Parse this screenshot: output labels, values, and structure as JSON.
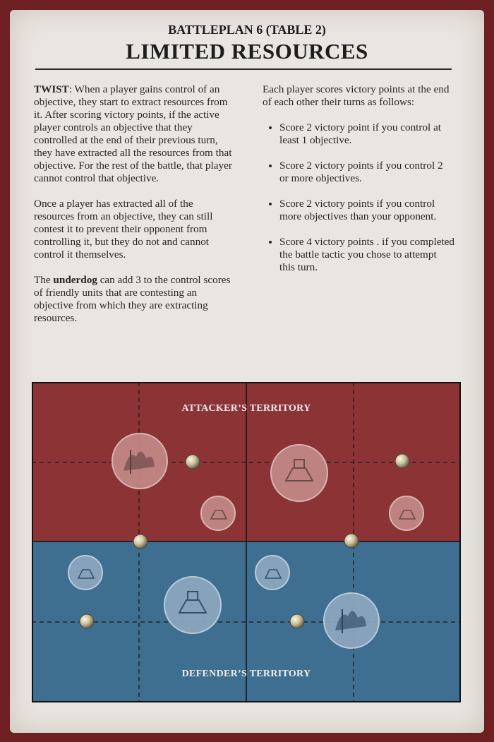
{
  "header": {
    "subtitle": "BATTLEPLAN 6 (TABLE 2)",
    "title": "LIMITED RESOURCES"
  },
  "left_column": {
    "twist_label": "TWIST",
    "twist_text": ": When a player gains control of an objective, they start to extract resources from it. After scoring victory points, if the active player controls an objective that they controlled at the end of their previous turn, they have extracted all the resources from that objective. For the rest of the battle, that player cannot control that objective.",
    "para2": "Once a player has extracted all of the resources from an objective, they can still contest it to prevent their opponent from controlling it, but they do not and cannot control it themselves.",
    "para3_prefix": "The ",
    "para3_bold": "underdog",
    "para3_suffix": " can add 3 to the control scores of friendly units that are contesting an objective from which they are extracting resources."
  },
  "right_column": {
    "intro": "Each player scores victory points at the end of each other their turns as follows:",
    "bullets": [
      "Score 2 victory point if you control at least 1 objective.",
      "Score 2 victory points if you control 2 or more objectives.",
      "Score 2 victory points if you control more objectives than your opponent.",
      "Score 4 victory points . if you completed the battle tactic you chose to attempt this turn."
    ]
  },
  "map": {
    "attacker_label": "ATTACKER’S TERRITORY",
    "defender_label": "DEFENDER’S TERRITORY",
    "colors": {
      "attacker": "#8c3336",
      "defender": "#3e6f91",
      "border": "#111111"
    }
  }
}
